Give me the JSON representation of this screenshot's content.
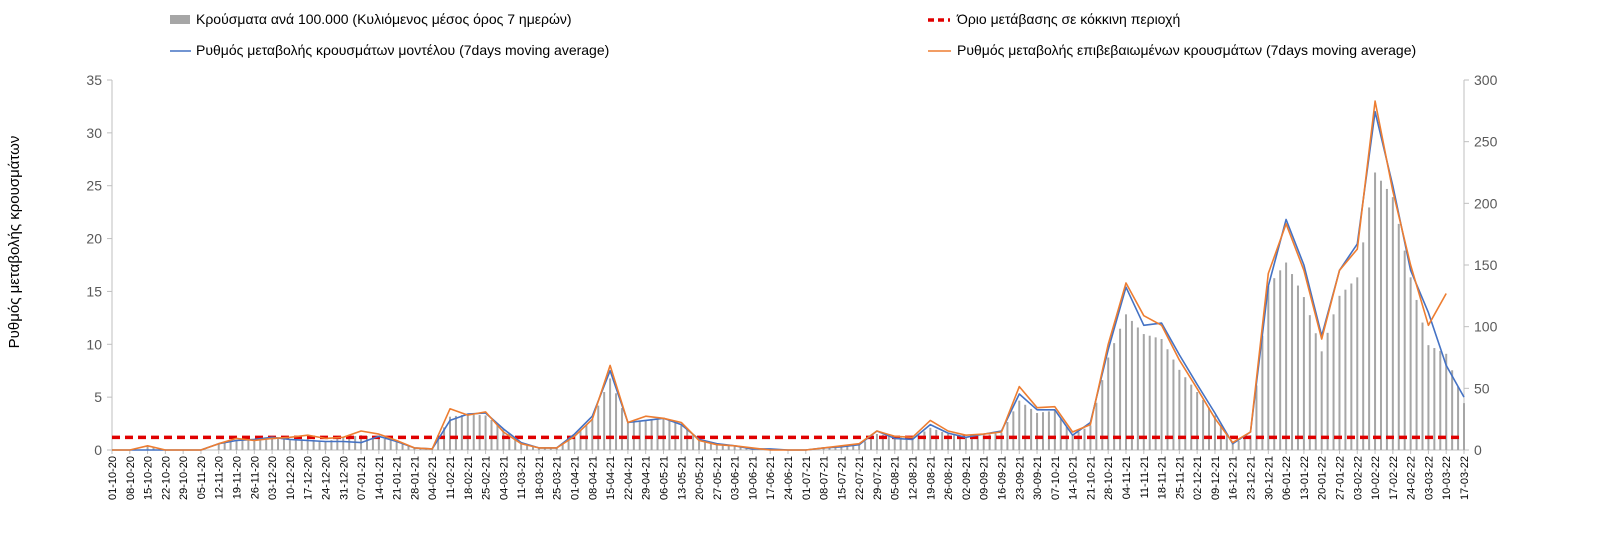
{
  "chart_data": {
    "type": "bar",
    "title": "",
    "ylabel": "Ρυθμός μεταβολής κρουσμάτων",
    "xlabel": "",
    "ylim": [
      0,
      35
    ],
    "y2lim": [
      0,
      300
    ],
    "yticks": [
      0,
      5,
      10,
      15,
      20,
      25,
      30,
      35
    ],
    "y2ticks": [
      0,
      50,
      100,
      150,
      200,
      250,
      300
    ],
    "grid": false,
    "legend": [
      {
        "key": "bars",
        "label": "Κρούσματα ανά 100.000 (Κυλιόμενος μέσος όρος 7 ημερών)",
        "color": "#a6a6a6"
      },
      {
        "key": "threshold",
        "label": "Όριο μετάβασης σε κόκκινη περιοχή",
        "color": "#e00000"
      },
      {
        "key": "model",
        "label": "Ρυθμός μεταβολής κρουσμάτων μοντέλου (7days moving average)",
        "color": "#4472c4"
      },
      {
        "key": "confirmed",
        "label": "Ρυθμός μεταβολής επιβεβαιωμένων κρουσμάτων (7days moving average)",
        "color": "#ed7d31"
      }
    ],
    "categories": [
      "01-10-20",
      "08-10-20",
      "15-10-20",
      "22-10-20",
      "29-10-20",
      "05-11-20",
      "12-11-20",
      "19-11-20",
      "26-11-20",
      "03-12-20",
      "10-12-20",
      "17-12-20",
      "24-12-20",
      "31-12-20",
      "07-01-21",
      "14-01-21",
      "21-01-21",
      "28-01-21",
      "04-02-21",
      "11-02-21",
      "18-02-21",
      "25-02-21",
      "04-03-21",
      "11-03-21",
      "18-03-21",
      "25-03-21",
      "01-04-21",
      "08-04-21",
      "15-04-21",
      "22-04-21",
      "29-04-21",
      "06-05-21",
      "13-05-21",
      "20-05-21",
      "27-05-21",
      "03-06-21",
      "10-06-21",
      "17-06-21",
      "24-06-21",
      "01-07-21",
      "08-07-21",
      "15-07-21",
      "22-07-21",
      "29-07-21",
      "05-08-21",
      "12-08-21",
      "19-08-21",
      "26-08-21",
      "02-09-21",
      "09-09-21",
      "16-09-21",
      "23-09-21",
      "30-09-21",
      "07-10-21",
      "14-10-21",
      "21-10-21",
      "28-10-21",
      "04-11-21",
      "11-11-21",
      "18-11-21",
      "25-11-21",
      "02-12-21",
      "09-12-21",
      "16-12-21",
      "23-12-21",
      "30-12-21",
      "06-01-22",
      "13-01-22",
      "20-01-22",
      "27-01-22",
      "03-02-22",
      "10-02-22",
      "17-02-22",
      "24-02-22",
      "03-03-22",
      "10-03-22",
      "17-03-22"
    ],
    "threshold": 1.2,
    "series": [
      {
        "name": "Κρούσματα ανά 100.000 (Κυλιόμενος μέσος όρος 7 ημερών)",
        "axis": "right",
        "type": "bar",
        "values": [
          0,
          0,
          3,
          0,
          0,
          0,
          5,
          8,
          9,
          10,
          8,
          9,
          7,
          10,
          12,
          10,
          7,
          2,
          1,
          27,
          29,
          28,
          17,
          6,
          2,
          2,
          11,
          25,
          58,
          22,
          24,
          26,
          20,
          9,
          5,
          3,
          1,
          0,
          0,
          0,
          2,
          3,
          4,
          13,
          11,
          9,
          18,
          13,
          10,
          12,
          14,
          40,
          30,
          32,
          12,
          20,
          75,
          110,
          94,
          90,
          65,
          47,
          28,
          5,
          12,
          133,
          152,
          124,
          80,
          125,
          140,
          225,
          205,
          140,
          85,
          78,
          38
        ]
      },
      {
        "name": "Ρυθμός μεταβολής κρουσμάτων μοντέλου (7days moving average)",
        "axis": "left",
        "type": "line",
        "values": [
          0,
          0,
          0,
          0,
          0,
          0,
          0.6,
          0.9,
          1.0,
          1.2,
          1.0,
          0.9,
          0.8,
          0.8,
          0.7,
          1.3,
          0.8,
          0.2,
          0.1,
          2.8,
          3.4,
          3.5,
          2.0,
          0.7,
          0.2,
          0.2,
          1.5,
          3.2,
          7.5,
          2.6,
          2.8,
          3.0,
          2.4,
          1.0,
          0.6,
          0.4,
          0.1,
          0.1,
          0,
          0,
          0.2,
          0.3,
          0.5,
          1.8,
          1.1,
          1.0,
          2.4,
          1.6,
          1.2,
          1.5,
          1.8,
          5.3,
          3.8,
          3.8,
          1.4,
          2.6,
          9.5,
          15.4,
          11.8,
          12.0,
          9.0,
          6.2,
          3.5,
          0.6,
          1.7,
          15.5,
          21.8,
          17.5,
          10.8,
          17.0,
          19.5,
          32.0,
          25.0,
          17.0,
          13.0,
          8.0,
          5.0
        ]
      },
      {
        "name": "Ρυθμός μεταβολής επιβεβαιωμένων κρουσμάτων (7days moving average)",
        "axis": "left",
        "type": "line",
        "values": [
          0,
          0,
          0.4,
          0,
          0,
          0,
          0.6,
          1.1,
          0.9,
          1.1,
          1.2,
          1.4,
          1.1,
          1.2,
          1.8,
          1.5,
          0.9,
          0.2,
          0.1,
          3.9,
          3.3,
          3.6,
          1.7,
          0.6,
          0.2,
          0.2,
          1.3,
          2.9,
          8.0,
          2.6,
          3.2,
          3.0,
          2.6,
          0.9,
          0.5,
          0.4,
          0.2,
          0,
          0,
          0,
          0.2,
          0.4,
          0.6,
          1.8,
          1.3,
          1.2,
          2.8,
          1.8,
          1.4,
          1.5,
          1.7,
          6.0,
          4.0,
          4.1,
          1.7,
          2.4,
          10.0,
          15.8,
          12.7,
          11.8,
          8.5,
          5.8,
          3.0,
          0.7,
          1.7,
          16.7,
          21.4,
          17.0,
          10.5,
          17.0,
          19.0,
          33.0,
          24.5,
          17.5,
          11.8,
          14.8,
          null
        ]
      }
    ]
  }
}
